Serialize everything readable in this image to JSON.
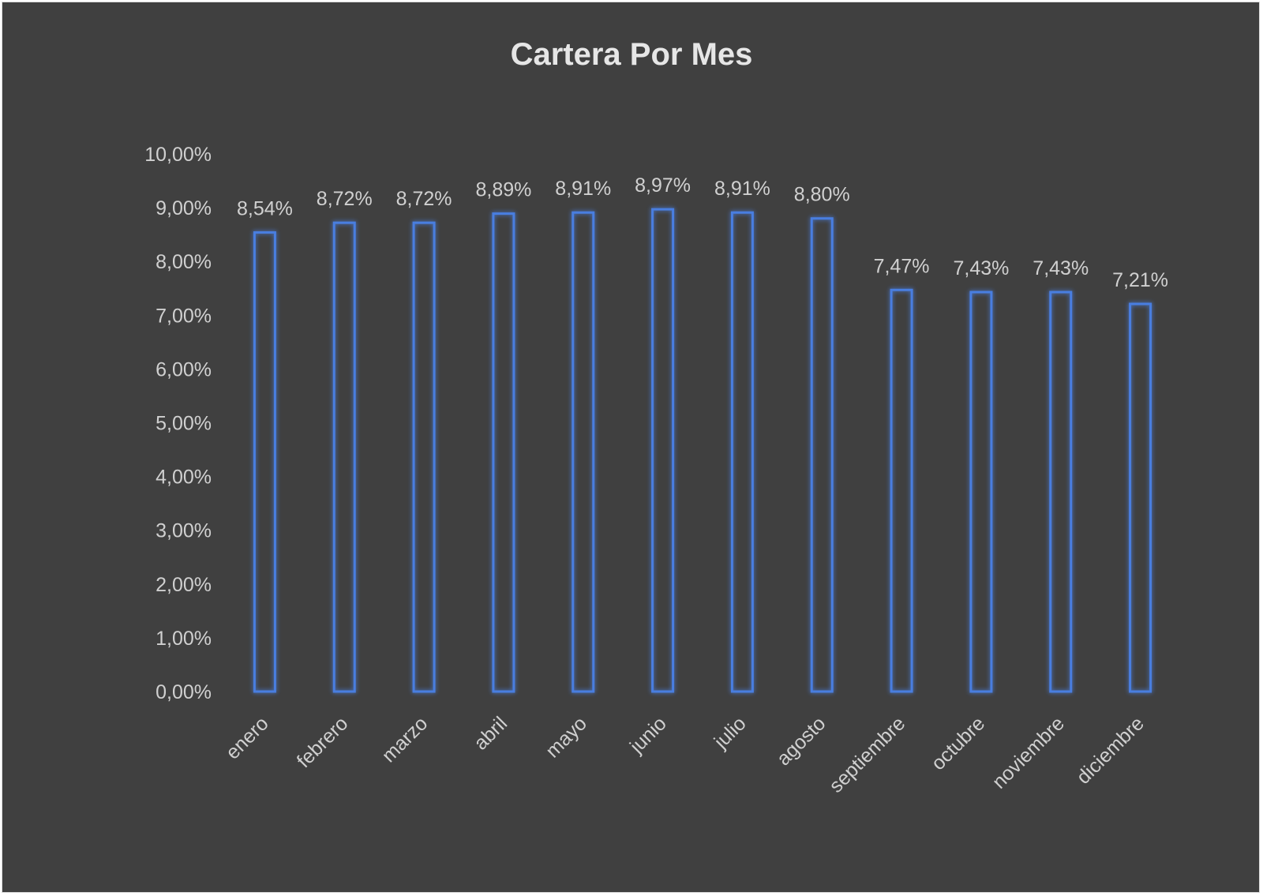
{
  "chart_data": {
    "type": "bar",
    "title": "Cartera Por Mes",
    "xlabel": "",
    "ylabel": "",
    "categories": [
      "enero",
      "febrero",
      "marzo",
      "abril",
      "mayo",
      "junio",
      "julio",
      "agosto",
      "septiembre",
      "octubre",
      "noviembre",
      "diciembre"
    ],
    "values": [
      8.54,
      8.72,
      8.72,
      8.89,
      8.91,
      8.97,
      8.91,
      8.8,
      7.47,
      7.43,
      7.43,
      7.21
    ],
    "data_labels": [
      "8,54%",
      "8,72%",
      "8,72%",
      "8,89%",
      "8,91%",
      "8,97%",
      "8,91%",
      "8,80%",
      "7,47%",
      "7,43%",
      "7,43%",
      "7,21%"
    ],
    "ylim": [
      0,
      10
    ],
    "yticks": [
      "0,00%",
      "1,00%",
      "2,00%",
      "3,00%",
      "4,00%",
      "5,00%",
      "6,00%",
      "7,00%",
      "8,00%",
      "9,00%",
      "10,00%"
    ],
    "grid": false,
    "legend": "none",
    "colors": {
      "background": "#404040",
      "bar_outline": "#4a7ee0",
      "text": "#d0d0d0"
    }
  }
}
